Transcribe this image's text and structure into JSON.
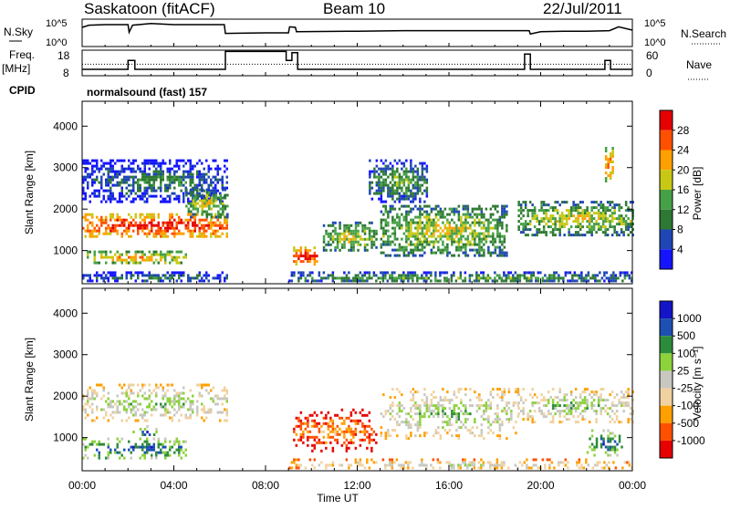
{
  "header": {
    "station": "Saskatoon (fitACF)",
    "beam": "Beam 10",
    "date": "22/Jul/2011"
  },
  "colors": {
    "power_scale": [
      "#1414ff",
      "#1e46b4",
      "#2d7832",
      "#46a046",
      "#c8c814",
      "#ffa000",
      "#ff5000",
      "#e60000"
    ],
    "velocity_scale": [
      "#e60000",
      "#ff5000",
      "#ffa000",
      "#f0d2a0",
      "#c8c8c0",
      "#8cd23c",
      "#2d8c3c",
      "#1e50b4",
      "#1414c8"
    ],
    "trace": "#000000"
  },
  "info_panels": {
    "nsky_label": "N.Sky",
    "nsky_ticks": [
      "10^5",
      "10^0"
    ],
    "nsearch_label": "N.Search",
    "nsearch_ticks": [
      "10^5",
      "10^0"
    ],
    "freq_label": "Freq.",
    "freq_unit": "[MHz]",
    "freq_ticks": [
      "18",
      "8"
    ],
    "nave_label": "Nave",
    "nave_ticks": [
      "60",
      "0"
    ],
    "cpid_label": "CPID",
    "cpid_text": "normalsound (fast) 157"
  },
  "chart_data": [
    {
      "type": "line",
      "id": "nsky",
      "x_unit_hours": true,
      "x": [
        0,
        0.3,
        1,
        2,
        2.05,
        2.2,
        3,
        4,
        5,
        6.2,
        6.25,
        8,
        9,
        9.05,
        9.3,
        9.35,
        12,
        14,
        16,
        18,
        19.5,
        19.55,
        20,
        21,
        22,
        23,
        23.4,
        24
      ],
      "y": [
        3.5,
        3.9,
        4.0,
        4.0,
        2.6,
        3.9,
        4.2,
        4.0,
        4.0,
        4.0,
        2.4,
        2.5,
        2.5,
        3.6,
        3.5,
        2.7,
        2.8,
        2.9,
        2.9,
        2.9,
        2.9,
        2.3,
        2.7,
        2.8,
        2.8,
        2.9,
        3.6,
        3.0
      ],
      "ylim": [
        0,
        5
      ],
      "ylabel_log": true
    },
    {
      "type": "line",
      "id": "frequency",
      "x": [
        0,
        2.0,
        2.0,
        2.3,
        2.3,
        6.25,
        6.25,
        8.9,
        8.9,
        9.15,
        9.15,
        9.4,
        9.4,
        19.3,
        19.3,
        19.55,
        19.55,
        22.8,
        22.8,
        23.05,
        23.05,
        24
      ],
      "y": [
        10.5,
        10.5,
        14.0,
        14.0,
        10.5,
        10.5,
        17.5,
        17.5,
        14.0,
        14.0,
        17.0,
        17.0,
        10.5,
        10.5,
        16.5,
        16.5,
        10.5,
        10.5,
        14.0,
        14.0,
        10.5,
        10.5
      ],
      "ylim": [
        8,
        18
      ],
      "nave_reference": 12.5
    },
    {
      "type": "heatmap",
      "id": "power",
      "title": "",
      "xlabel": "",
      "ylabel": "Slant Range [km]",
      "xlim": [
        0,
        24
      ],
      "ylim": [
        200,
        4600
      ],
      "x_ticks": [
        "00:00",
        "04:00",
        "08:00",
        "12:00",
        "16:00",
        "20:00",
        "00:00"
      ],
      "y_ticks": [
        1000,
        2000,
        3000,
        4000
      ],
      "colorbar": {
        "label": "Power [dB]",
        "ticks": [
          4,
          8,
          12,
          16,
          20,
          24,
          28
        ]
      },
      "features": [
        {
          "t0": 0.0,
          "t1": 6.3,
          "r0": 1350,
          "r1": 1900,
          "level": 6
        },
        {
          "t0": 0.2,
          "t1": 4.5,
          "r0": 700,
          "r1": 1000,
          "level": 4
        },
        {
          "t0": 0.0,
          "t1": 6.3,
          "r0": 2200,
          "r1": 3200,
          "level": 1
        },
        {
          "t0": 4.5,
          "t1": 6.3,
          "r0": 1800,
          "r1": 2500,
          "level": 3
        },
        {
          "t0": 0.0,
          "t1": 6.3,
          "r0": 250,
          "r1": 500,
          "level": 1
        },
        {
          "t0": 9.0,
          "t1": 24,
          "r0": 250,
          "r1": 500,
          "level": 2
        },
        {
          "t0": 9.2,
          "t1": 10.2,
          "r0": 700,
          "r1": 1100,
          "level": 6
        },
        {
          "t0": 10.5,
          "t1": 12.8,
          "r0": 1000,
          "r1": 1700,
          "level": 3
        },
        {
          "t0": 13.0,
          "t1": 18.5,
          "r0": 900,
          "r1": 2100,
          "level": 3
        },
        {
          "t0": 12.5,
          "t1": 15.0,
          "r0": 2200,
          "r1": 3200,
          "level": 2
        },
        {
          "t0": 19.0,
          "t1": 24,
          "r0": 1400,
          "r1": 2200,
          "level": 3
        },
        {
          "t0": 22.8,
          "t1": 23.1,
          "r0": 2700,
          "r1": 3500,
          "level": 5
        }
      ]
    },
    {
      "type": "heatmap",
      "id": "velocity",
      "title": "",
      "xlabel": "Time UT",
      "ylabel": "Slant Range [km]",
      "xlim": [
        0,
        24
      ],
      "ylim": [
        200,
        4600
      ],
      "x_ticks": [
        "00:00",
        "04:00",
        "08:00",
        "12:00",
        "16:00",
        "20:00",
        "00:00"
      ],
      "y_ticks": [
        1000,
        2000,
        3000,
        4000
      ],
      "colorbar": {
        "label": "Velocity [m s⁻¹]",
        "ticks": [
          -1000,
          -500,
          -100,
          -25,
          25,
          100,
          500,
          1000
        ]
      },
      "features": [
        {
          "t0": 0.0,
          "t1": 6.3,
          "r0": 1400,
          "r1": 2300,
          "level": 4
        },
        {
          "t0": 0.0,
          "t1": 4.5,
          "r0": 500,
          "r1": 1000,
          "level": 6
        },
        {
          "t0": 2.2,
          "t1": 3.2,
          "r0": 1000,
          "r1": 1300,
          "level": 6
        },
        {
          "t0": 9.0,
          "t1": 24,
          "r0": 250,
          "r1": 500,
          "level": 3
        },
        {
          "t0": 9.2,
          "t1": 12.8,
          "r0": 700,
          "r1": 1700,
          "level": 1
        },
        {
          "t0": 13.0,
          "t1": 19.0,
          "r0": 1000,
          "r1": 2200,
          "level": 4
        },
        {
          "t0": 19.0,
          "t1": 24,
          "r0": 1400,
          "r1": 2200,
          "level": 4
        },
        {
          "t0": 22.0,
          "t1": 23.5,
          "r0": 600,
          "r1": 1200,
          "level": 6
        }
      ]
    }
  ]
}
